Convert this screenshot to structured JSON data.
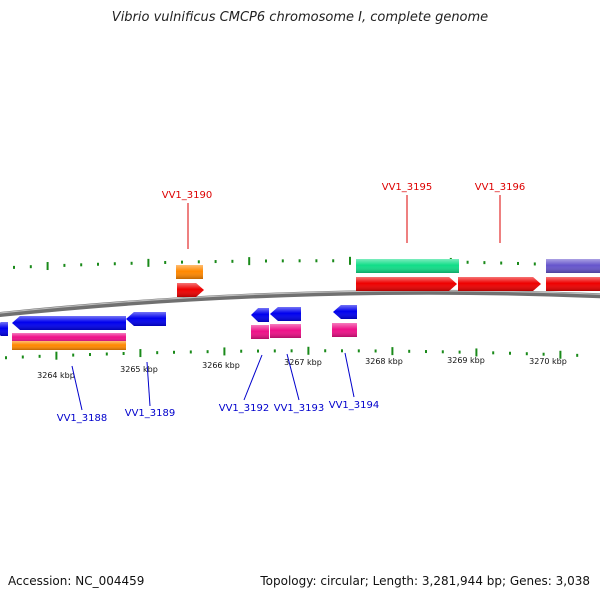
{
  "title": "Vibrio vulnificus CMCP6 chromosome I, complete genome",
  "accession_text": "Accession: NC_004459",
  "topology_text": "Topology: circular; Length: 3,281,944 bp; Genes: 3,038",
  "colors": {
    "backbone": "#808080",
    "tick": "#1a8a1a",
    "top_label": "#dd0000",
    "bottom_label": "#0000cc"
  },
  "scale": {
    "unit": "kbp",
    "ticks": [
      {
        "kbp": 3264,
        "label": "3264 kbp"
      },
      {
        "kbp": 3265,
        "label": "3265 kbp"
      },
      {
        "kbp": 3266,
        "label": "3266 kbp"
      },
      {
        "kbp": 3267,
        "label": "3267 kbp"
      },
      {
        "kbp": 3268,
        "label": "3268 kbp"
      },
      {
        "kbp": 3269,
        "label": "3269 kbp"
      },
      {
        "kbp": 3270,
        "label": "3270 kbp"
      }
    ]
  },
  "labels": {
    "top": [
      {
        "name": "VV1_3190"
      },
      {
        "name": "VV1_3195"
      },
      {
        "name": "VV1_3196"
      }
    ],
    "bottom": [
      {
        "name": "VV1_3188"
      },
      {
        "name": "VV1_3189"
      },
      {
        "name": "VV1_3192"
      },
      {
        "name": "VV1_3193"
      },
      {
        "name": "VV1_3194"
      }
    ]
  },
  "features": [
    {
      "strand": "reverse",
      "color": "#0000ee",
      "kind": "arrow"
    },
    {
      "strand": "reverse",
      "color": "#0000ee",
      "kind": "arrow"
    },
    {
      "strand": "reverse",
      "color": "#0000ee",
      "kind": "arrow"
    },
    {
      "strand": "reverse",
      "color": "#ee1188",
      "kind": "box"
    },
    {
      "strand": "reverse",
      "color": "#ff8800",
      "kind": "box"
    },
    {
      "strand": "forward",
      "color": "#ff8800",
      "kind": "box"
    },
    {
      "strand": "forward",
      "color": "#ee0000",
      "kind": "arrow"
    },
    {
      "strand": "reverse",
      "color": "#0000ee",
      "kind": "arrow"
    },
    {
      "strand": "reverse",
      "color": "#0000ee",
      "kind": "arrow"
    },
    {
      "strand": "reverse",
      "color": "#ee1188",
      "kind": "box"
    },
    {
      "strand": "reverse",
      "color": "#ee1188",
      "kind": "box"
    },
    {
      "strand": "reverse",
      "color": "#0000ee",
      "kind": "arrow"
    },
    {
      "strand": "reverse",
      "color": "#ee1188",
      "kind": "box"
    },
    {
      "strand": "forward",
      "color": "#11dd88",
      "kind": "box"
    },
    {
      "strand": "forward",
      "color": "#ee0000",
      "kind": "arrow"
    },
    {
      "strand": "forward",
      "color": "#ee0000",
      "kind": "arrow"
    },
    {
      "strand": "forward",
      "color": "#6655cc",
      "kind": "box"
    },
    {
      "strand": "forward",
      "color": "#ee0000",
      "kind": "box"
    }
  ]
}
